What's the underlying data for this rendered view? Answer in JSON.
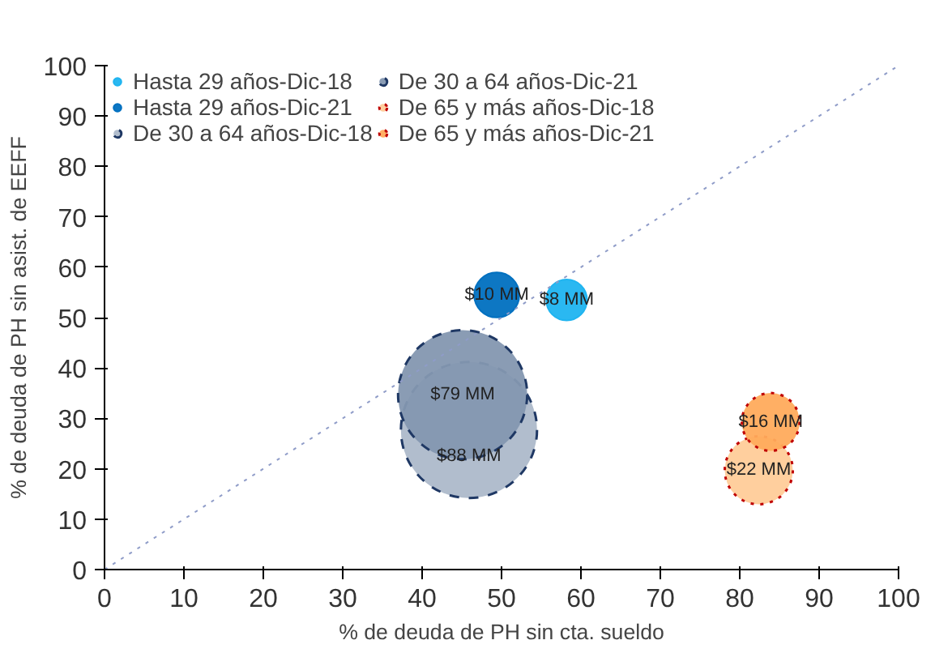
{
  "chart_data": {
    "type": "bubble",
    "xlabel": "% de deuda de PH sin cta. sueldo",
    "ylabel": "% de deuda de PH sin asist. de EEFF",
    "xlim": [
      0,
      100
    ],
    "ylim": [
      0,
      100
    ],
    "xticks": [
      0,
      10,
      20,
      30,
      40,
      50,
      60,
      70,
      80,
      90,
      100
    ],
    "yticks": [
      0,
      10,
      20,
      30,
      40,
      50,
      60,
      70,
      80,
      90,
      100
    ],
    "grid": false,
    "legend": "top left",
    "series": [
      {
        "name": "Hasta 29 años-Dic-18",
        "color": "#1fb4f0",
        "x": [
          58.2
        ],
        "values": [
          53.5
        ],
        "sizes": [
          0.09
        ]
      },
      {
        "name": "Hasta 29 años-Dic-21",
        "color": "#0070c0",
        "x": [
          49.4
        ],
        "values": [
          54.5
        ],
        "sizes": [
          0.11
        ]
      },
      {
        "name": "De 30 a 64 años-Dic-18",
        "color": "#adb9ca",
        "line_style": "dashed",
        "x": [
          45.9
        ],
        "values": [
          27.7
        ],
        "sizes": [
          1
        ]
      },
      {
        "name": "De 30 a 64 años-Dic-21",
        "color": "#8497b0",
        "line_style": "dashed",
        "x": [
          45.1
        ],
        "values": [
          34.7
        ],
        "sizes": [
          0.9
        ]
      },
      {
        "name": "De 65 y más años-Dic-18",
        "color": "#ffcc99",
        "line_style": "dotted",
        "x": [
          82.4
        ],
        "values": [
          19.7
        ],
        "sizes": [
          0.25
        ]
      },
      {
        "name": "De 65 y más años-Dic-21",
        "color": "#ffab5c",
        "line_style": "dotted",
        "x": [
          83.9
        ],
        "values": [
          29.3
        ],
        "sizes": [
          0.18
        ]
      },
      {
        "type": "line",
        "color": "#8f9cc8",
        "line_style": "dotted",
        "x": [
          0,
          100
        ],
        "values": [
          0,
          100
        ]
      }
    ],
    "annotations": [
      {
        "text": "$8 MM",
        "x": 58.2,
        "y": 53.5
      },
      {
        "text": "$10 MM",
        "x": 49.4,
        "y": 54.5
      },
      {
        "text": "$88 MM",
        "x": 45.9,
        "y": 22.5
      },
      {
        "text": "$79 MM",
        "x": 45.1,
        "y": 34.7
      },
      {
        "text": "$22 MM",
        "x": 82.4,
        "y": 19.7
      },
      {
        "text": "$16 MM",
        "x": 83.9,
        "y": 29.3
      }
    ]
  }
}
